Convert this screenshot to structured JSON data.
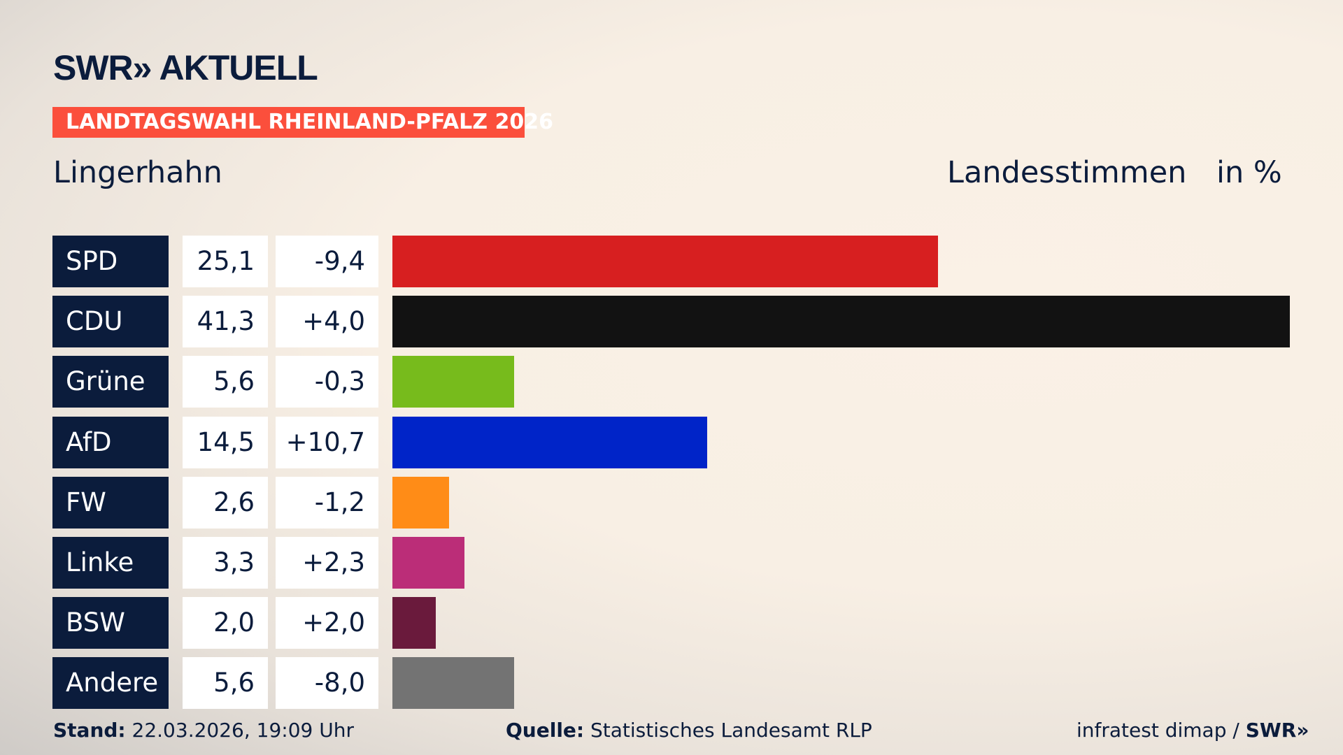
{
  "header": {
    "logo": "SWR» AKTUELL",
    "banner": "LANDTAGSWAHL RHEINLAND-PFALZ 2026",
    "place": "Lingerhahn",
    "measure": "Landesstimmen",
    "unit": "in %"
  },
  "chart_data": {
    "type": "bar",
    "orientation": "horizontal",
    "categories": [
      "SPD",
      "CDU",
      "Grüne",
      "AfD",
      "FW",
      "Linke",
      "BSW",
      "Andere"
    ],
    "values": [
      25.1,
      41.3,
      5.6,
      14.5,
      2.6,
      3.3,
      2.0,
      5.6
    ],
    "value_labels": [
      "25,1",
      "41,3",
      "5,6",
      "14,5",
      "2,6",
      "3,3",
      "2,0",
      "5,6"
    ],
    "diff_labels": [
      "-9,4",
      "+4,0",
      "-0,3",
      "+10,7",
      "-1,2",
      "+2,3",
      "+2,0",
      "-8,0"
    ],
    "colors": [
      "#d71f20",
      "#121212",
      "#77bb1c",
      "#0024c8",
      "#ff8c17",
      "#bb2d78",
      "#6a1a3c",
      "#737373"
    ],
    "grid": false
  },
  "footer": {
    "stand_label": "Stand:",
    "stand_value": "22.03.2026, 19:09 Uhr",
    "source_label": "Quelle:",
    "source_value": "Statistisches Landesamt RLP",
    "credit": "infratest dimap /",
    "credit_logo": "SWR»"
  }
}
